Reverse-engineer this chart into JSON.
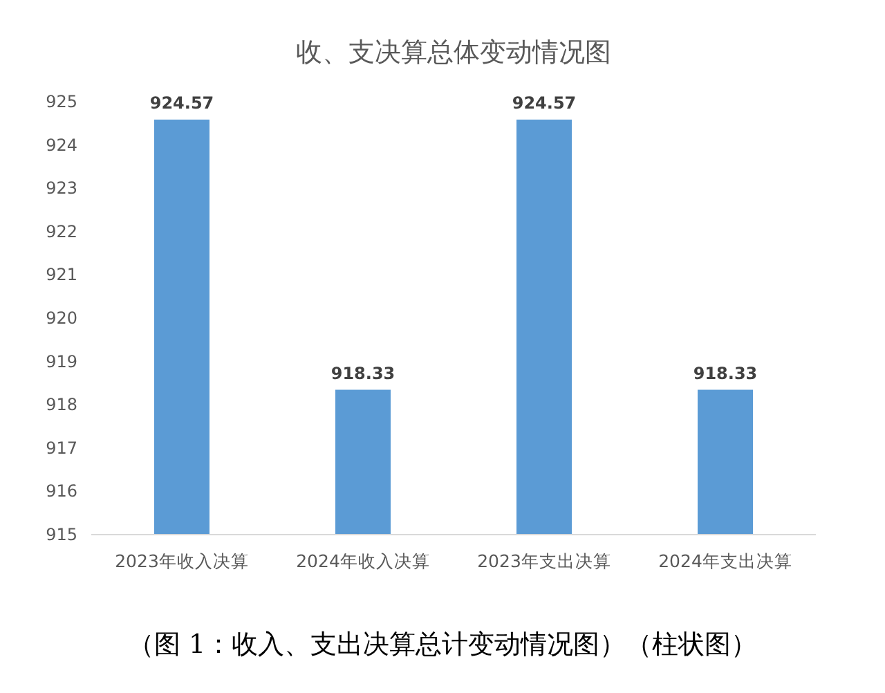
{
  "chart_data": {
    "type": "bar",
    "title": "收、支决算总体变动情况图",
    "categories": [
      "2023年收入决算",
      "2024年收入决算",
      "2023年支出决算",
      "2024年支出决算"
    ],
    "values": [
      924.57,
      918.33,
      924.57,
      918.33
    ],
    "color": "#5b9bd5",
    "ylim": [
      915,
      925
    ],
    "yticks": [
      915,
      916,
      917,
      918,
      919,
      920,
      921,
      922,
      923,
      924,
      925
    ],
    "data_labels": true,
    "annotations": [
      "（图 1：收入、支出决算总计变动情况图）（柱状图）"
    ]
  }
}
